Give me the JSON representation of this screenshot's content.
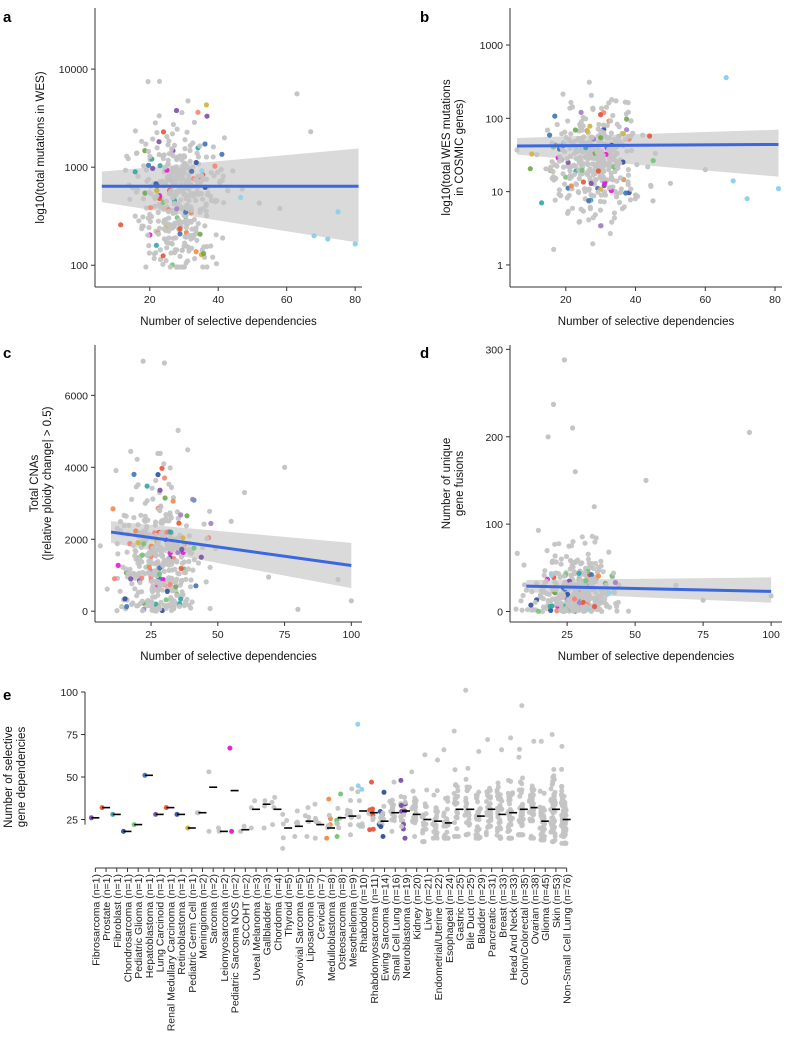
{
  "colors": {
    "grey_point": "#c4c4c4",
    "trend_line": "#3b67e0",
    "ci_band": "#d4d4d4",
    "axis": "#333333",
    "palette": [
      "#e8543a",
      "#7b4fa6",
      "#74c476",
      "#3f74b5",
      "#f08a4b",
      "#e21ad1",
      "#31a6a6",
      "#a17fc4",
      "#fa8072",
      "#2f4f9e",
      "#8ed1e8",
      "#d0b43c",
      "#6aa84f"
    ]
  },
  "chart_data": [
    {
      "id": "a",
      "panel_label": "a",
      "type": "scatter",
      "xlabel": "Number of selective dependencies",
      "ylabel": "log10(total mutations in WES)",
      "xscale": "linear",
      "yscale": "log",
      "xlim": [
        4,
        82
      ],
      "ylim": [
        60,
        42000
      ],
      "xticks": [
        20,
        40,
        60,
        80
      ],
      "yticks": [
        100,
        1000,
        10000
      ],
      "ytick_labels": [
        "100",
        "1000",
        "10000"
      ],
      "trend": {
        "x": [
          6,
          81
        ],
        "y": [
          640,
          640
        ],
        "ci_low": [
          440,
          170
        ],
        "ci_high": [
          900,
          1550
        ]
      },
      "points": {
        "n": 420,
        "seed": 11,
        "x_center": 26,
        "x_spread": 7,
        "y_center": 500,
        "y_log_spread": 0.38,
        "colored_fraction": 0.13,
        "outliers": [
          [
            58,
            380
          ],
          [
            68,
            200
          ],
          [
            72,
            185
          ],
          [
            80,
            165
          ],
          [
            67,
            2300
          ],
          [
            63,
            5600
          ],
          [
            75,
            350
          ],
          [
            52,
            430
          ],
          [
            47,
            600
          ]
        ]
      }
    },
    {
      "id": "b",
      "panel_label": "b",
      "type": "scatter",
      "xlabel": "Number of selective dependencies",
      "ylabel": "log10(total WES mutations in COSMIC genes)",
      "ylabel_lines": [
        "log10(total WES mutations",
        "in COSMIC genes)"
      ],
      "xscale": "linear",
      "yscale": "log",
      "xlim": [
        4,
        82
      ],
      "ylim": [
        0.5,
        3200
      ],
      "xticks": [
        20,
        40,
        60,
        80
      ],
      "yticks": [
        1,
        10,
        100,
        1000
      ],
      "ytick_labels": [
        "1",
        "10",
        "100",
        "1000"
      ],
      "trend": {
        "x": [
          6,
          81
        ],
        "y": [
          42,
          44
        ],
        "ci_low": [
          32,
          16
        ],
        "ci_high": [
          54,
          70
        ]
      },
      "points": {
        "n": 420,
        "seed": 23,
        "x_center": 26,
        "x_spread": 7,
        "y_center": 28,
        "y_log_spread": 0.34,
        "colored_fraction": 0.13,
        "outliers": [
          [
            66,
            360
          ],
          [
            68,
            14
          ],
          [
            72,
            8
          ],
          [
            81,
            11
          ],
          [
            50,
            13
          ],
          [
            45,
            7.5
          ],
          [
            60,
            20
          ],
          [
            40,
            9
          ]
        ]
      }
    },
    {
      "id": "c",
      "panel_label": "c",
      "type": "scatter",
      "xlabel": "Number of selective dependencies",
      "ylabel": "Total CNAs (|relative ploidy change| > 0.5)",
      "ylabel_lines": [
        "Total CNAs",
        "(|relative ploidy change| > 0.5)"
      ],
      "xscale": "linear",
      "yscale": "linear",
      "xlim": [
        4,
        104
      ],
      "ylim": [
        -300,
        7400
      ],
      "xticks": [
        25,
        50,
        75,
        100
      ],
      "yticks": [
        0,
        2000,
        4000,
        6000
      ],
      "ytick_labels": [
        "0",
        "2000",
        "4000",
        "6000"
      ],
      "trend": {
        "x": [
          10,
          100
        ],
        "y": [
          2200,
          1270
        ],
        "ci_low": [
          1900,
          640
        ],
        "ci_high": [
          2500,
          1900
        ]
      },
      "points": {
        "n": 420,
        "seed": 37,
        "x_center": 26,
        "x_spread": 8,
        "y_center": 1400,
        "y_spread": 1100,
        "clip_min": 0,
        "colored_fraction": 0.15,
        "outliers": [
          [
            22,
            6950
          ],
          [
            30,
            6900
          ],
          [
            80,
            50
          ],
          [
            69,
            950
          ],
          [
            75,
            4000
          ],
          [
            95,
            880
          ],
          [
            100,
            290
          ],
          [
            60,
            3300
          ],
          [
            55,
            2500
          ]
        ]
      }
    },
    {
      "id": "d",
      "panel_label": "d",
      "type": "scatter",
      "xlabel": "Number of selective dependencies",
      "ylabel": "Number of unique gene fusions",
      "ylabel_lines": [
        "Number of unique",
        "gene fusions"
      ],
      "xscale": "linear",
      "yscale": "linear",
      "xlim": [
        4,
        104
      ],
      "ylim": [
        -12,
        305
      ],
      "xticks": [
        25,
        50,
        75,
        100
      ],
      "yticks": [
        0,
        100,
        200,
        300
      ],
      "ytick_labels": [
        "0",
        "100",
        "200",
        "300"
      ],
      "trend": {
        "x": [
          10,
          100
        ],
        "y": [
          29,
          23
        ],
        "ci_low": [
          22,
          10
        ],
        "ci_high": [
          36,
          39
        ]
      },
      "points": {
        "n": 420,
        "seed": 53,
        "x_center": 26,
        "x_spread": 8,
        "y_center": 22,
        "y_spread": 22,
        "clip_min": 0,
        "colored_fraction": 0.17,
        "outliers": [
          [
            24,
            288
          ],
          [
            20,
            237
          ],
          [
            92,
            205
          ],
          [
            27,
            210
          ],
          [
            18,
            200
          ],
          [
            54,
            150
          ],
          [
            75,
            13
          ],
          [
            100,
            18
          ],
          [
            65,
            30
          ],
          [
            28,
            160
          ],
          [
            35,
            120
          ]
        ]
      }
    },
    {
      "id": "e",
      "panel_label": "e",
      "type": "strip",
      "ylabel": "Number of selective gene dependencies",
      "ylabel_lines": [
        "Number of selective",
        "gene dependencies"
      ],
      "ylim": [
        0,
        110
      ],
      "yticks": [
        25,
        50,
        75,
        100
      ],
      "ytick_labels": [
        "25",
        "50",
        "75",
        "100"
      ],
      "categories": [
        "Fibrosarcoma (n=1)",
        "Prostate (n=1)",
        "Fibroblast (n=1)",
        "Chondrosarcoma (n=1)",
        "Pediatric Glioma (n=1)",
        "Hepatoblastoma (n=1)",
        "Lung Carcinoid (n=1)",
        "Renal Medullary Carcinoma (n=1)",
        "Retinoblastoma (n=1)",
        "Pediatric Germ Cell (n=1)",
        "Meningioma (n=2)",
        "Sarcoma (n=2)",
        "Leiomyosarcoma (n=2)",
        "Pediatric Sarcoma NOS (n=2)",
        "SCCOHT (n=2)",
        "Uveal Melanoma (n=3)",
        "Gallbladder (n=3)",
        "Chordoma (n=4)",
        "Thyroid (n=5)",
        "Synovial Sarcoma (n=5)",
        "Liposarcoma (n=5)",
        "Cervical (n=7)",
        "Medulloblastoma (n=8)",
        "Osteosarcoma (n=8)",
        "Mesothelioma (n=9)",
        "Rhabdoid (n=10)",
        "Rhabdomyosarcoma (n=11)",
        "Ewing Sarcoma (n=14)",
        "Small Cell Lung (n=16)",
        "Neuroblastoma (n=19)",
        "Kidney (n=20)",
        "Liver (n=21)",
        "Endometrial/Uterine (n=22)",
        "Esophageal (n=24)",
        "Gastric (n=25)",
        "Bile Duct (n=25)",
        "Bladder (n=29)",
        "Pancreatic (n=31)",
        "Breast (n=33)",
        "Head And Neck (n=33)",
        "Colon/Colorectal (n=35)",
        "Ovarian (n=38)",
        "Glioma (n=45)",
        "Skin (n=53)",
        "Non-Small Cell Lung (n=76)"
      ],
      "counts": [
        1,
        1,
        1,
        1,
        1,
        1,
        1,
        1,
        1,
        1,
        2,
        2,
        2,
        2,
        2,
        3,
        3,
        4,
        5,
        5,
        5,
        7,
        8,
        8,
        9,
        10,
        11,
        14,
        16,
        19,
        20,
        21,
        22,
        24,
        25,
        25,
        29,
        31,
        33,
        33,
        35,
        38,
        45,
        53,
        76
      ],
      "medians": [
        26,
        32,
        28,
        18,
        22,
        51,
        28,
        32,
        28,
        20,
        29,
        44,
        18,
        42,
        19,
        31,
        34,
        31,
        20,
        21,
        24,
        22,
        20,
        26,
        27,
        30,
        29,
        24,
        29,
        30,
        28,
        25,
        24,
        23,
        31,
        31,
        27,
        31,
        28,
        29,
        31,
        32,
        24,
        31,
        25
      ],
      "maxima": [
        26,
        32,
        28,
        18,
        22,
        51,
        28,
        32,
        28,
        20,
        29,
        53,
        20,
        67,
        21,
        36,
        36,
        38,
        28,
        30,
        32,
        34,
        37,
        40,
        43,
        81,
        47,
        41,
        47,
        48,
        53,
        63,
        60,
        66,
        77,
        101,
        65,
        72,
        66,
        73,
        92,
        71,
        71,
        75,
        68
      ],
      "minima": [
        26,
        32,
        28,
        18,
        22,
        51,
        28,
        32,
        28,
        20,
        29,
        18,
        18,
        18,
        18,
        20,
        20,
        22,
        8,
        15,
        15,
        14,
        14,
        15,
        16,
        21,
        19,
        15,
        18,
        14,
        15,
        12,
        14,
        14,
        15,
        16,
        14,
        16,
        14,
        14,
        16,
        14,
        13,
        12,
        11
      ],
      "point_colors": [
        "#7b4fa6",
        "#e8543a",
        "#31a6a6",
        "#2f4f9e",
        "#74c476",
        "#3f74b5",
        "#7b4fa6",
        "#e8543a",
        "#2f4f9e",
        "#d0b43c",
        "#c4c4c4",
        "#c4c4c4",
        "#c4c4c4",
        "#e21ad1",
        "#c4c4c4",
        "#c4c4c4",
        "#c4c4c4",
        "#c4c4c4",
        "#c4c4c4",
        "#c4c4c4",
        "#c4c4c4",
        "#c4c4c4",
        "#f08a4b",
        "#74c476",
        "#c4c4c4",
        "#8ed1e8",
        "#e8543a",
        "#2f4f9e",
        "#c4c4c4",
        "#7b4fa6",
        "#c4c4c4",
        "#c4c4c4",
        "#c4c4c4",
        "#c4c4c4",
        "#c4c4c4",
        "#c4c4c4",
        "#c4c4c4",
        "#c4c4c4",
        "#c4c4c4",
        "#c4c4c4",
        "#c4c4c4",
        "#c4c4c4",
        "#c4c4c4",
        "#c4c4c4",
        "#c4c4c4"
      ]
    }
  ]
}
